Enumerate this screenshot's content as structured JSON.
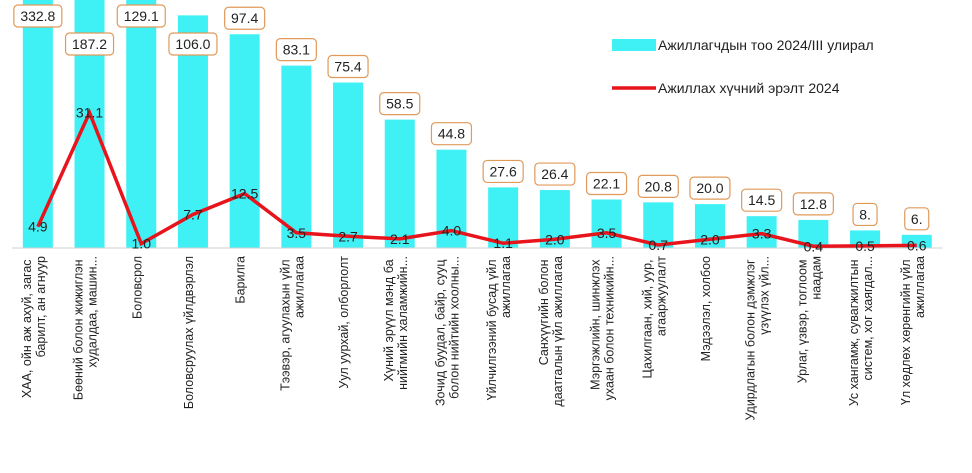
{
  "chart_data": {
    "type": "bar-line",
    "categories": [
      "ХАА, ойн аж ахуй, загас барилт, ан агнуур",
      "Бөөний болон жижиглэн худалдаа, машин...",
      "Боловсрол",
      "Боловсруулах үйлдвэрлэл",
      "Барилга",
      "Тээвэр, агуулахын үйл ажиллагаа",
      "Уул уурхай, олборлолт",
      "Хүний эрүүл мэнд ба нийгмийн халамжийн...",
      "Зочид буудал, байр, сууц болон нийтийн хоолны...",
      "Үйлчилгээний бусад үйл ажиллагаа",
      "Санхүүгийн болон даатгалын үйл ажиллагаа",
      "Мэргэжлийн, шинжлэх ухаан болон техникийн...",
      "Цахилгаан, хий, уур, агааржуулалт",
      "Мэдээлэл, холбоо",
      "Удирдлагын болон дэмжлэг үзүүлэх үйл...",
      "Урлаг, үзвэр, тоглоом наадам",
      "Ус хангамж, сувагжилтын систем, хог хаягдал...",
      "Үл хөдлөх хөрөнгийн үйл ажиллагаа"
    ],
    "series": [
      {
        "name": "Ажиллагчдын тоо  2024/III улирал",
        "type": "bar",
        "color": "#3ff0f4",
        "values": [
          332.8,
          187.2,
          129.1,
          106.0,
          97.4,
          83.1,
          75.4,
          58.5,
          44.8,
          27.6,
          26.4,
          22.1,
          20.8,
          20.0,
          14.5,
          12.8,
          8,
          6
        ],
        "value_labels": [
          "332.8",
          "187.2",
          "129.1",
          "106.0",
          "97.4",
          "83.1",
          "75.4",
          "58.5",
          "44.8",
          "27.6",
          "26.4",
          "22.1",
          "20.8",
          "20.0",
          "14.5",
          "12.8",
          "8.",
          "6."
        ]
      },
      {
        "name": "Ажиллах хүчний эрэлт 2024",
        "type": "line",
        "color": "#e8141c",
        "axis": "y2",
        "values": [
          4.9,
          31.1,
          1.0,
          7.7,
          12.5,
          3.5,
          2.7,
          2.1,
          4.0,
          1.1,
          2.0,
          3.5,
          0.7,
          2.0,
          3.3,
          0.4,
          0.5,
          0.6
        ],
        "value_labels": [
          "4.9",
          "31.1",
          "1.0",
          "7.7",
          "12.5",
          "3.5",
          "2.7",
          "2.1",
          "4.0",
          "1.1",
          "2.0",
          "3.5",
          "0.7",
          "2.0",
          "3.3",
          "0.4",
          "0.5",
          "0.6"
        ]
      }
    ],
    "ylim": [
      0,
      113
    ],
    "y2lim": [
      0,
      57
    ],
    "legend": "top-right",
    "grid": false
  }
}
